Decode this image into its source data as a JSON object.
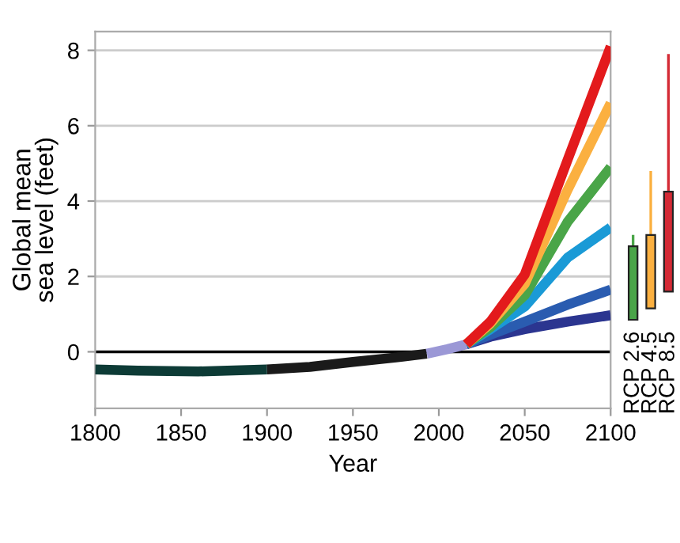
{
  "chart_data": [
    {
      "type": "line",
      "xlabel": "Year",
      "ylabel": "Global mean\nsea level (feet)",
      "xlim": [
        1800,
        2100
      ],
      "ylim": [
        -1.5,
        8.5
      ],
      "xticks": [
        1800,
        1850,
        1900,
        1950,
        2000,
        2050,
        2100
      ],
      "yticks": [
        0,
        2,
        4,
        6,
        8
      ],
      "grid": "y",
      "legend": false,
      "line_style": "solid",
      "marker": "none",
      "ref_lines": [
        {
          "axis": "y",
          "value": 0,
          "color": "#000000"
        }
      ],
      "series": [
        {
          "color": "#0d3b36",
          "x": [
            1800,
            1825,
            1860,
            1900
          ],
          "values": [
            -0.47,
            -0.5,
            -0.52,
            -0.47
          ]
        },
        {
          "color": "#1a1a1a",
          "x": [
            1900,
            1925,
            1950,
            1975,
            1993
          ],
          "values": [
            -0.47,
            -0.4,
            -0.27,
            -0.15,
            -0.05
          ]
        },
        {
          "color": "#9b98d6",
          "x": [
            1993,
            2005,
            2016
          ],
          "values": [
            -0.05,
            0.07,
            0.2
          ]
        },
        {
          "color": "#2b3590",
          "x": [
            2016,
            2030,
            2050,
            2075,
            2100
          ],
          "values": [
            0.2,
            0.4,
            0.6,
            0.8,
            0.97
          ]
        },
        {
          "color": "#2a5cb0",
          "x": [
            2016,
            2030,
            2050,
            2075,
            2100
          ],
          "values": [
            0.2,
            0.45,
            0.8,
            1.25,
            1.65
          ]
        },
        {
          "color": "#1a9ad6",
          "x": [
            2016,
            2030,
            2050,
            2075,
            2100
          ],
          "values": [
            0.2,
            0.6,
            1.2,
            2.5,
            3.3
          ]
        },
        {
          "color": "#4aa548",
          "x": [
            2016,
            2030,
            2050,
            2075,
            2100
          ],
          "values": [
            0.2,
            0.65,
            1.5,
            3.45,
            4.9
          ]
        },
        {
          "color": "#fbb040",
          "x": [
            2016,
            2030,
            2050,
            2075,
            2100
          ],
          "values": [
            0.2,
            0.75,
            1.8,
            4.3,
            6.6
          ]
        },
        {
          "color": "#e31a1c",
          "x": [
            2016,
            2030,
            2050,
            2075,
            2100
          ],
          "values": [
            0.2,
            0.8,
            2.05,
            5.1,
            8.1
          ]
        }
      ]
    },
    {
      "type": "bar",
      "categories": [
        "RCP 2.6",
        "RCP 4.5",
        "RCP 8.5"
      ],
      "ylim": [
        -1.5,
        8.5
      ],
      "tick_labels": "x",
      "base": [
        0.85,
        1.15,
        1.6
      ],
      "values": [
        1.95,
        1.95,
        2.65
      ],
      "colors": [
        "#4aa548",
        "#fbb040",
        "#d42a35"
      ],
      "errors": [
        [
          2.8,
          3.1
        ],
        [
          3.1,
          4.8
        ],
        [
          4.25,
          7.9
        ]
      ]
    }
  ]
}
